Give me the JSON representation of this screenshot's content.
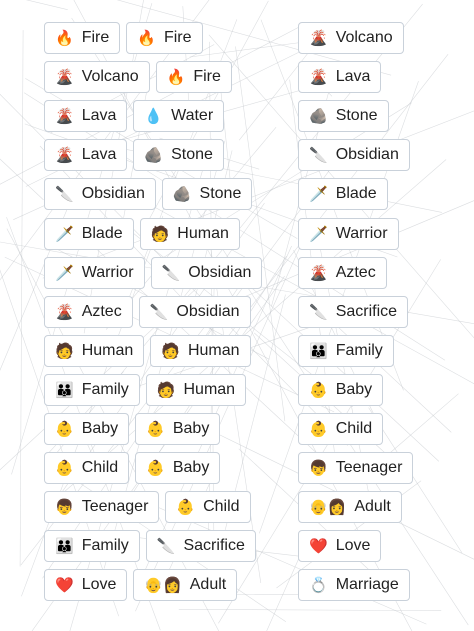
{
  "rows": [
    {
      "first": {
        "emoji": "🔥",
        "text": "Fire"
      },
      "second": {
        "emoji": "🔥",
        "text": "Fire"
      },
      "result": {
        "emoji": "🌋",
        "text": "Volcano"
      }
    },
    {
      "first": {
        "emoji": "🌋",
        "text": "Volcano"
      },
      "second": {
        "emoji": "🔥",
        "text": "Fire"
      },
      "result": {
        "emoji": "🌋",
        "text": "Lava"
      }
    },
    {
      "first": {
        "emoji": "🌋",
        "text": "Lava"
      },
      "second": {
        "emoji": "💧",
        "text": "Water"
      },
      "result": {
        "emoji": "🪨",
        "text": "Stone"
      }
    },
    {
      "first": {
        "emoji": "🌋",
        "text": "Lava"
      },
      "second": {
        "emoji": "🪨",
        "text": "Stone"
      },
      "result": {
        "emoji": "🔪",
        "text": "Obsidian"
      }
    },
    {
      "first": {
        "emoji": "🔪",
        "text": "Obsidian"
      },
      "second": {
        "emoji": "🪨",
        "text": "Stone"
      },
      "result": {
        "emoji": "🗡️",
        "text": "Blade"
      }
    },
    {
      "first": {
        "emoji": "🗡️",
        "text": "Blade"
      },
      "second": {
        "emoji": "🧑",
        "text": "Human"
      },
      "result": {
        "emoji": "🗡️",
        "text": "Warrior"
      }
    },
    {
      "first": {
        "emoji": "🗡️",
        "text": "Warrior"
      },
      "second": {
        "emoji": "🔪",
        "text": "Obsidian"
      },
      "result": {
        "emoji": "🌋",
        "text": "Aztec"
      }
    },
    {
      "first": {
        "emoji": "🌋",
        "text": "Aztec"
      },
      "second": {
        "emoji": "🔪",
        "text": "Obsidian"
      },
      "result": {
        "emoji": "🔪",
        "text": "Sacrifice"
      }
    },
    {
      "first": {
        "emoji": "🧑",
        "text": "Human"
      },
      "second": {
        "emoji": "🧑",
        "text": "Human"
      },
      "result": {
        "emoji": "👪",
        "text": "Family"
      }
    },
    {
      "first": {
        "emoji": "👪",
        "text": "Family"
      },
      "second": {
        "emoji": "🧑",
        "text": "Human"
      },
      "result": {
        "emoji": "👶",
        "text": "Baby"
      }
    },
    {
      "first": {
        "emoji": "👶",
        "text": "Baby"
      },
      "second": {
        "emoji": "👶",
        "text": "Baby"
      },
      "result": {
        "emoji": "👶",
        "text": "Child"
      }
    },
    {
      "first": {
        "emoji": "👶",
        "text": "Child"
      },
      "second": {
        "emoji": "👶",
        "text": "Baby"
      },
      "result": {
        "emoji": "👦",
        "text": "Teenager"
      }
    },
    {
      "first": {
        "emoji": "👦",
        "text": "Teenager"
      },
      "second": {
        "emoji": "👶",
        "text": "Child"
      },
      "result": {
        "emoji": "👴👩",
        "text": "Adult"
      }
    },
    {
      "first": {
        "emoji": "👪",
        "text": "Family"
      },
      "second": {
        "emoji": "🔪",
        "text": "Sacrifice"
      },
      "result": {
        "emoji": "❤️",
        "text": "Love"
      }
    },
    {
      "first": {
        "emoji": "❤️",
        "text": "Love"
      },
      "second": {
        "emoji": "👴👩",
        "text": "Adult"
      },
      "result": {
        "emoji": "💍",
        "text": "Marriage"
      }
    }
  ]
}
